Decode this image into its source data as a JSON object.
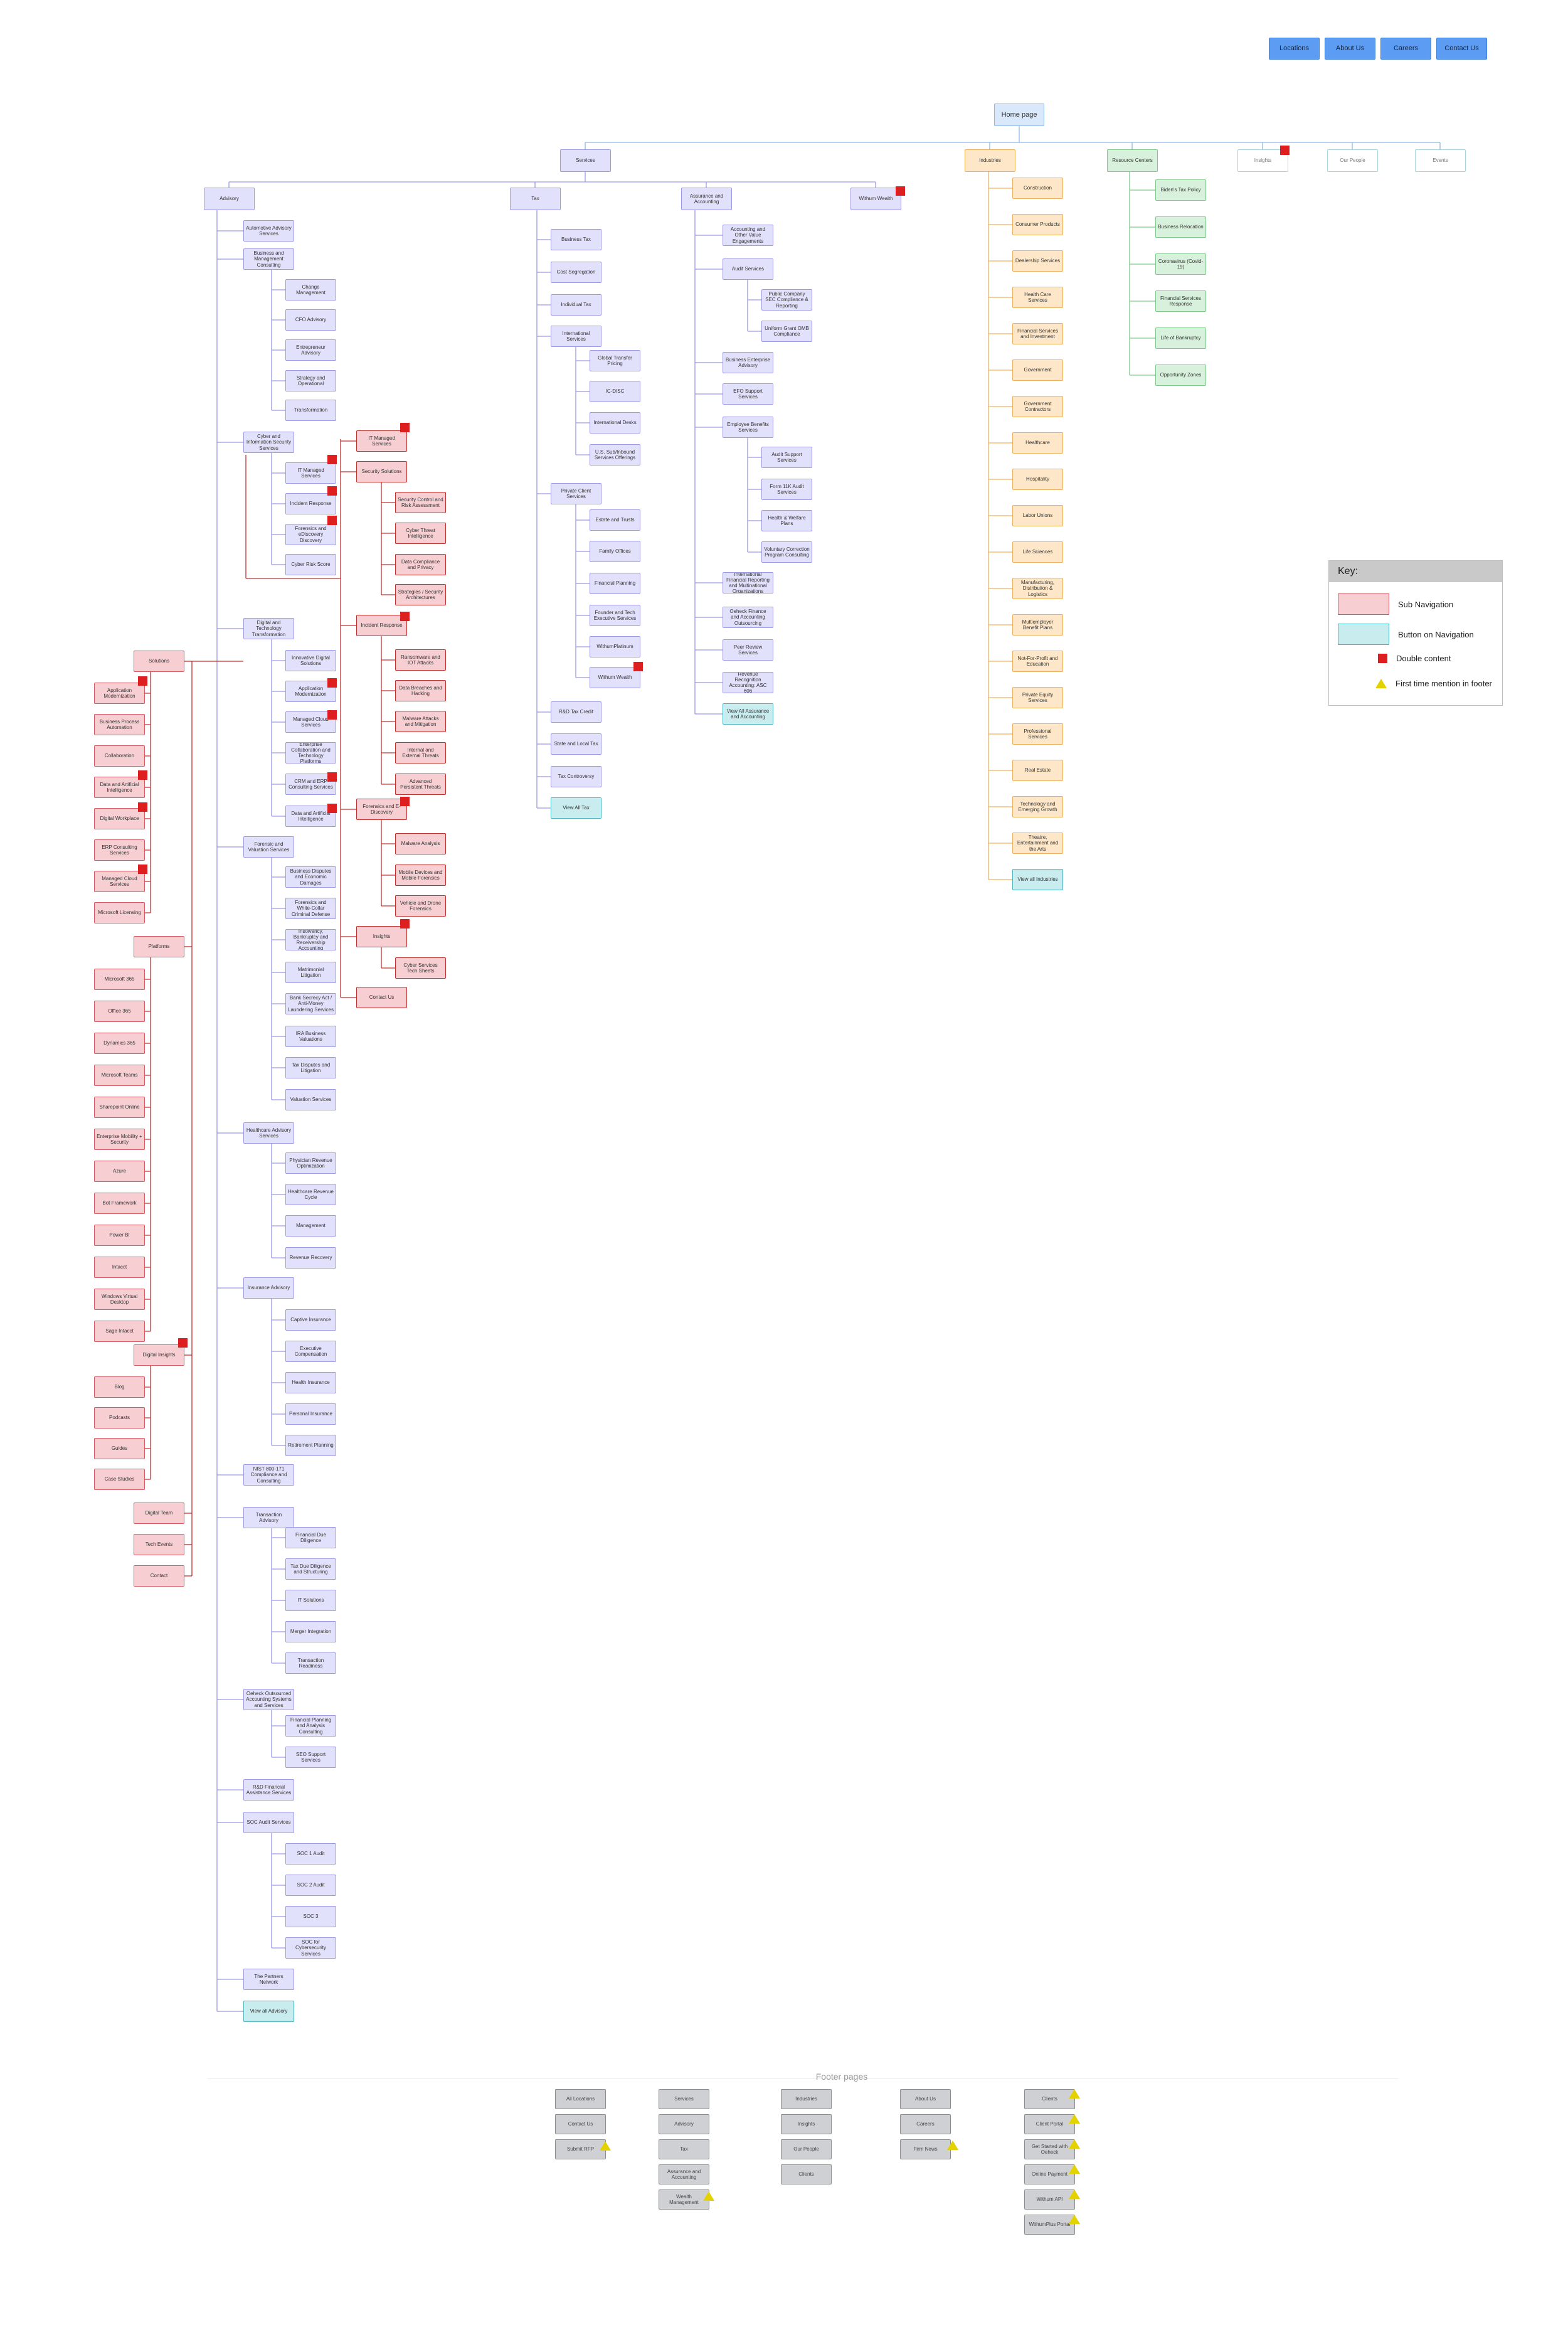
{
  "top_nav": [
    "Locations",
    "About Us",
    "Careers",
    "Contact Us"
  ],
  "home": "Home page",
  "level1": [
    "Services",
    "Industries",
    "Resource Centers",
    "Insights",
    "Our People",
    "Events"
  ],
  "services_cats": [
    "Advisory",
    "Tax",
    "Assurance and Accounting",
    "Withum Wealth"
  ],
  "advisory": [
    "Automotive Advisory Services",
    "Business and Management Consulting",
    "Cyber and Information Security Services",
    "Digital and Technology Transformation",
    "Forensic and Valuation Services",
    "Healthcare Advisory Services",
    "Insurance Advisory",
    "NIST 800-171 Compliance and Consulting",
    "Transaction Advisory",
    "Oeheck Outsourced Accounting Systems and Services",
    "R&D Financial Assistance Services",
    "SOC Audit Services",
    "The Partners Network",
    "View all Advisory"
  ],
  "bmc_children": [
    "Change Management",
    "CFO Advisory",
    "Entrepreneur Advisory",
    "Strategy and Operational",
    "Transformation"
  ],
  "cyber_children": [
    "IT Managed Services",
    "Incident Response",
    "Forensics and eDiscovery Discovery",
    "Cyber Risk Score"
  ],
  "cyber_right": [
    "IT Managed Services",
    "Security Solutions",
    "Incident Response",
    "Forensics and E-Discovery",
    "Insights",
    "Contact Us"
  ],
  "security_solutions": [
    "Security Control and Risk Assessment",
    "Cyber Threat Intelligence",
    "Data Compliance and Privacy",
    "Strategies / Security Architectures"
  ],
  "incident_response": [
    "Ransomware and IOT Attacks",
    "Data Breaches and Hacking",
    "Malware Attacks and Mitigation",
    "Internal and External Threats",
    "Advanced Persistent Threats"
  ],
  "forensics_ed": [
    "Malware Analysis",
    "Mobile Devices and Mobile Forensics",
    "Vehicle and Drone Forensics"
  ],
  "insights_sub": [
    "Cyber Services Tech Sheets"
  ],
  "dtt_children": [
    "Innovative Digital Solutions",
    "Application Modernization",
    "Managed Cloud Services",
    "Enterprise Collaboration and Technology Platforms",
    "CRM and ERP Consulting Services",
    "Data and Artificial Intelligence"
  ],
  "solutions_title": "Solutions",
  "solutions": [
    "Application Modernization",
    "Business Process Automation",
    "Collaboration",
    "Data and Artificial Intelligence",
    "Digital Workplace",
    "ERP Consulting Services",
    "Managed Cloud Services",
    "Microsoft Licensing"
  ],
  "platforms_title": "Platforms",
  "platforms": [
    "Microsoft 365",
    "Office 365",
    "Dynamics 365",
    "Microsoft Teams",
    "Sharepoint Online",
    "Enterprise Mobility + Security",
    "Azure",
    "Bot Framework",
    "Power BI",
    "Intacct",
    "Windows Virtual Desktop",
    "Sage Intacct"
  ],
  "digital_insights_title": "Digital Insights",
  "digital_insights": [
    "Blog",
    "Podcasts",
    "Guides",
    "Case Studies"
  ],
  "side_extra": [
    "Digital Team",
    "Tech Events",
    "Contact"
  ],
  "forensic_children": [
    "Business Disputes and Economic Damages",
    "Forensics and White-Collar Criminal Defense",
    "Insolvency, Bankruptcy and Receivership Accounting",
    "Matrimonial Litigation",
    "Bank Secrecy Act / Anti-Money Laundering Services",
    "IRA Business Valuations",
    "Tax Disputes and Litigation",
    "Valuation Services"
  ],
  "healthcare_children": [
    "Physician Revenue Optimization",
    "Healthcare Revenue Cycle",
    "Management",
    "Revenue Recovery"
  ],
  "insurance_children": [
    "Captive Insurance",
    "Executive Compensation",
    "Health Insurance",
    "Personal Insurance",
    "Retirement Planning"
  ],
  "transaction_children": [
    "Financial Due Diligence",
    "Tax Due Diligence and Structuring",
    "IT Solutions",
    "Merger Integration",
    "Transaction Readiness"
  ],
  "outsourced_children": [
    "Financial Planning and Analysis Consulting",
    "SEO Support Services"
  ],
  "soc_children": [
    "SOC 1 Audit",
    "SOC 2 Audit",
    "SOC 3",
    "SOC for Cybersecurity Services"
  ],
  "tax": [
    "Business Tax",
    "Cost Segregation",
    "Individual Tax",
    "International Services",
    "Private Client Services",
    "R&D Tax Credit",
    "State and Local Tax",
    "Tax Controversy",
    "View All Tax"
  ],
  "international": [
    "Global Transfer Pricing",
    "IC-DISC",
    "International Desks",
    "U.S. Sub/Inbound Services Offerings"
  ],
  "private_client": [
    "Estate and Trusts",
    "Family Offices",
    "Financial Planning",
    "Founder and Tech Executive Services",
    "WithumPlatinum",
    "Withum Wealth"
  ],
  "assurance": [
    "Accounting and Other Value Engagements",
    "Audit Services",
    "Business Enterprise Advisory",
    "EFO Support Services",
    "Employee Benefits Services",
    "International Financial Reporting and Multinational Organizations",
    "Oeheck Finance and Accounting Outsourcing",
    "Peer Review Services",
    "Revenue Recognition Accounting: ASC 606",
    "View All Assurance and Accounting"
  ],
  "audit_services": [
    "Public Company SEC Compliance & Reporting",
    "Uniform Grant OMB Compliance"
  ],
  "employee_benefits": [
    "Audit Support Services",
    "Form 11K Audit Services",
    "Health & Welfare Plans",
    "Voluntary Correction Program Consulting"
  ],
  "industries": [
    "Construction",
    "Consumer Products",
    "Dealership Services",
    "Health Care Services",
    "Financial Services and Investment",
    "Government",
    "Government Contractors",
    "Healthcare",
    "Hospitality",
    "Labor Unions",
    "Life Sciences",
    "Manufacturing, Distribution & Logistics",
    "Multiemployer Benefit Plans",
    "Not-For-Profit and Education",
    "Private Equity Services",
    "Professional Services",
    "Real Estate",
    "Technology and Emerging Growth",
    "Theatre, Entertainment and the Arts",
    "View all Industries"
  ],
  "resource_centers": [
    "Biden's Tax Policy",
    "Business Relocation",
    "Coronavirus (Covid-19)",
    "Financial Services Response",
    "Life of Bankruptcy",
    "Opportunity Zones"
  ],
  "key": {
    "title": "Key:",
    "sub_nav": "Sub Navigation",
    "button_nav": "Button on Navigation",
    "double": "Double content",
    "first": "First time mention in footer"
  },
  "footer_title": "Footer pages",
  "footer_col1": [
    "All Locations",
    "Contact Us",
    "Submit RFP"
  ],
  "footer_col2": [
    "Services",
    "Advisory",
    "Tax",
    "Assurance and Accounting",
    "Wealth Management"
  ],
  "footer_col3": [
    "Industries",
    "Insights",
    "Our People",
    "Clients"
  ],
  "footer_col4": [
    "About Us",
    "Careers",
    "Firm News"
  ],
  "footer_col5": [
    "Clients",
    "Client Portal",
    "Get Started with Oeheck",
    "Online Payment",
    "Withum API",
    "WithumPlus Portal"
  ],
  "colors": {
    "purple": "#e2e1fb",
    "pink": "#f7cfd2",
    "orange": "#fde7c8",
    "green": "#d8f1dc",
    "teal": "#c9ecef",
    "red_flag": "#dd1f1f",
    "warn": "#e3d200"
  }
}
